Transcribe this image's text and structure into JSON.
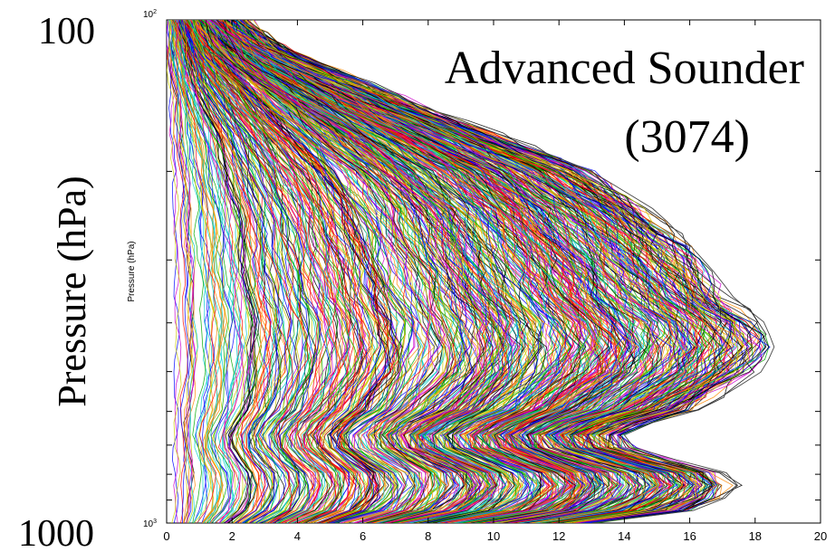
{
  "chart_data": {
    "type": "line",
    "title": "",
    "annotation_line1": "Advanced Sounder",
    "annotation_line2": "(3074)",
    "ylabel_large": "Pressure (hPa)",
    "ylabel_small": "Pressure (hPa)",
    "y_scale": "log",
    "y_inverted": true,
    "ylim": [
      100,
      1000
    ],
    "y_tick_small_top": "10",
    "y_tick_small_top_exp": "2",
    "y_tick_small_bottom": "10",
    "y_tick_small_bottom_exp": "3",
    "y_tick_large_top": "100",
    "y_tick_large_bottom": "1000",
    "xlim": [
      0,
      20
    ],
    "x_ticks": [
      "0",
      "2",
      "4",
      "6",
      "8",
      "10",
      "12",
      "14",
      "16",
      "18",
      "20"
    ],
    "profile_count": 3074,
    "grid": false,
    "series_colors": [
      "#ff0000",
      "#00aa00",
      "#0000ff",
      "#00cccc",
      "#cc00cc",
      "#cccc00",
      "#000000",
      "#ff8800"
    ],
    "envelope": {
      "pressure": [
        100,
        115,
        130,
        150,
        170,
        200,
        240,
        280,
        320,
        360,
        400,
        450,
        500,
        550,
        600,
        640,
        680,
        720,
        760,
        800,
        850,
        900,
        950,
        1000
      ],
      "max_mixing_ratio": [
        2.3,
        3.6,
        5.6,
        8.0,
        10.3,
        13.0,
        15.0,
        16.0,
        16.8,
        17.4,
        18.3,
        18.6,
        18.2,
        17.2,
        16.2,
        14.5,
        13.8,
        14.5,
        16.0,
        17.3,
        17.5,
        17.0,
        16.0,
        13.0
      ]
    }
  }
}
